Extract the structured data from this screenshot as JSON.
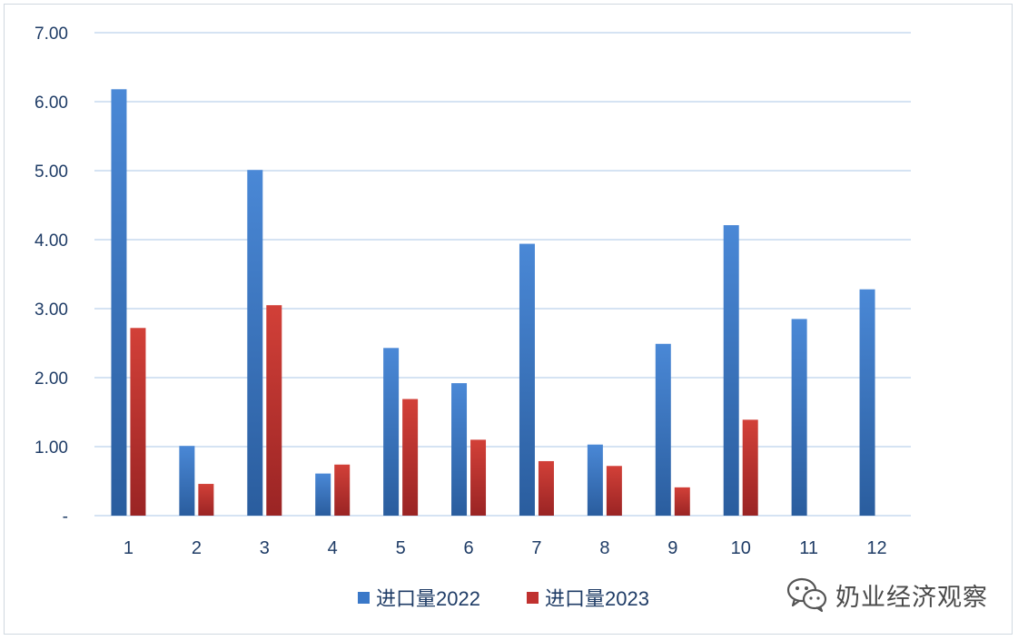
{
  "chart_data": {
    "type": "bar",
    "categories": [
      "1",
      "2",
      "3",
      "4",
      "5",
      "6",
      "7",
      "8",
      "9",
      "10",
      "11",
      "12"
    ],
    "series": [
      {
        "name": "进口量2022",
        "color": "#3a78c8",
        "values": [
          6.18,
          1.01,
          5.01,
          0.61,
          2.43,
          1.92,
          3.94,
          1.03,
          2.49,
          4.21,
          2.85,
          3.28
        ]
      },
      {
        "name": "进口量2023",
        "color": "#c0312f",
        "values": [
          2.72,
          0.46,
          3.05,
          0.74,
          1.69,
          1.1,
          0.79,
          0.72,
          0.41,
          1.39,
          null,
          null
        ]
      }
    ],
    "yticks": [
      "-",
      "1.00",
      "2.00",
      "3.00",
      "4.00",
      "5.00",
      "6.00",
      "7.00"
    ],
    "ylim": [
      0,
      7
    ],
    "grid": true,
    "legend_position": "bottom"
  },
  "watermark": {
    "text": "奶业经济观察",
    "icon": "wechat-icon"
  }
}
